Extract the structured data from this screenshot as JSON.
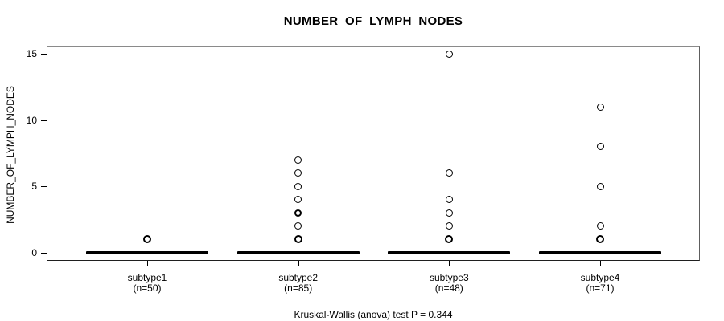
{
  "colors": {
    "foreground": "#000000",
    "background": "#ffffff",
    "box_border_top": "#8a8a8a"
  },
  "chart_data": {
    "type": "boxplot",
    "title": "NUMBER_OF_LYMPH_NODES",
    "ylabel": "NUMBER_OF_LYMPH_NODES",
    "xlabel": "",
    "caption": "Kruskal-Wallis (anova) test P = 0.344",
    "ylim": [
      0,
      15
    ],
    "yticks": [
      0,
      5,
      10,
      15
    ],
    "grid": false,
    "legend": false,
    "groups": [
      {
        "label": "subtype1",
        "sublabel": "(n=50)",
        "n": 50,
        "median": 0,
        "outliers": [
          {
            "value": 1,
            "weight": "bold"
          }
        ]
      },
      {
        "label": "subtype2",
        "sublabel": "(n=85)",
        "n": 85,
        "median": 0,
        "outliers": [
          {
            "value": 7,
            "weight": "normal"
          },
          {
            "value": 6,
            "weight": "normal"
          },
          {
            "value": 5,
            "weight": "normal"
          },
          {
            "value": 4,
            "weight": "normal"
          },
          {
            "value": 3,
            "weight": "medium"
          },
          {
            "value": 2,
            "weight": "normal"
          },
          {
            "value": 1,
            "weight": "bold"
          }
        ]
      },
      {
        "label": "subtype3",
        "sublabel": "(n=48)",
        "n": 48,
        "median": 0,
        "outliers": [
          {
            "value": 15,
            "weight": "normal"
          },
          {
            "value": 6,
            "weight": "normal"
          },
          {
            "value": 4,
            "weight": "normal"
          },
          {
            "value": 3,
            "weight": "normal"
          },
          {
            "value": 2,
            "weight": "normal"
          },
          {
            "value": 1,
            "weight": "bold"
          }
        ]
      },
      {
        "label": "subtype4",
        "sublabel": "(n=71)",
        "n": 71,
        "median": 0,
        "outliers": [
          {
            "value": 11,
            "weight": "normal"
          },
          {
            "value": 8,
            "weight": "normal"
          },
          {
            "value": 5,
            "weight": "normal"
          },
          {
            "value": 2,
            "weight": "normal"
          },
          {
            "value": 1,
            "weight": "bold"
          }
        ]
      }
    ]
  }
}
